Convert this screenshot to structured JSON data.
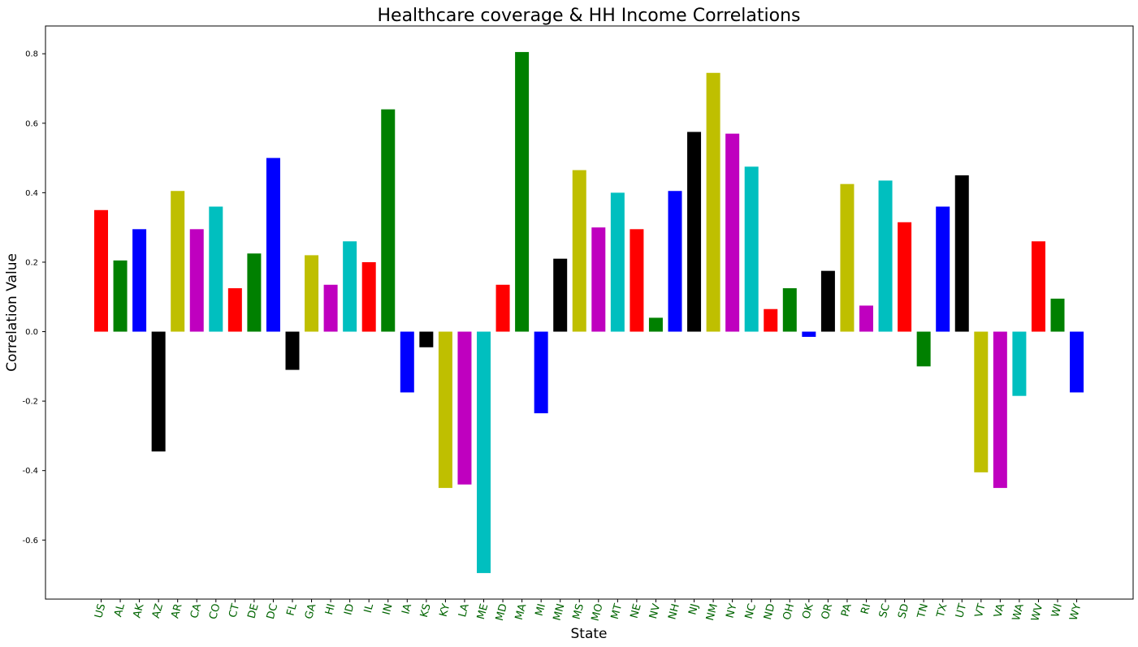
{
  "chart_data": {
    "type": "bar",
    "title": "Healthcare coverage & HH Income Correlations",
    "xlabel": "State",
    "ylabel": "Correlation Value",
    "ylim": [
      -0.77,
      0.88
    ],
    "yticks": [
      "0.8",
      "0.6",
      "0.4",
      "0.2",
      "0.0",
      "-0.2",
      "-0.4",
      "-0.6"
    ],
    "ytick_values": [
      0.8,
      0.6,
      0.4,
      0.2,
      0.0,
      -0.2,
      -0.4,
      -0.6
    ],
    "xtick_color": "#006400",
    "bar_colors": [
      "#ff0000",
      "#008000",
      "#0000ff",
      "#000000",
      "#bfbf00",
      "#bf00bf",
      "#00bfbf"
    ],
    "grid": false,
    "categories": [
      "US",
      "AL",
      "AK",
      "AZ",
      "AR",
      "CA",
      "CO",
      "CT",
      "DE",
      "DC",
      "FL",
      "GA",
      "HI",
      "ID",
      "IL",
      "IN",
      "IA",
      "KS",
      "KY",
      "LA",
      "ME",
      "MD",
      "MA",
      "MI",
      "MN",
      "MS",
      "MO",
      "MT",
      "NE",
      "NV",
      "NH",
      "NJ",
      "NM",
      "NY",
      "NC",
      "ND",
      "OH",
      "OK",
      "OR",
      "PA",
      "RI",
      "SC",
      "SD",
      "TN",
      "TX",
      "UT",
      "VT",
      "VA",
      "WA",
      "WV",
      "WI",
      "WY"
    ],
    "values": [
      0.35,
      0.205,
      0.295,
      -0.345,
      0.405,
      0.295,
      0.36,
      0.125,
      0.225,
      0.5,
      -0.11,
      0.22,
      0.135,
      0.26,
      0.2,
      0.64,
      -0.175,
      -0.045,
      -0.45,
      -0.44,
      -0.695,
      0.135,
      0.805,
      -0.235,
      0.21,
      0.465,
      0.3,
      0.4,
      0.295,
      0.04,
      0.405,
      0.575,
      0.745,
      0.57,
      0.475,
      0.065,
      0.125,
      -0.015,
      0.175,
      0.425,
      0.075,
      0.435,
      0.315,
      -0.1,
      0.36,
      0.45,
      -0.405,
      -0.45,
      -0.185,
      0.26,
      0.095,
      -0.175
    ]
  }
}
